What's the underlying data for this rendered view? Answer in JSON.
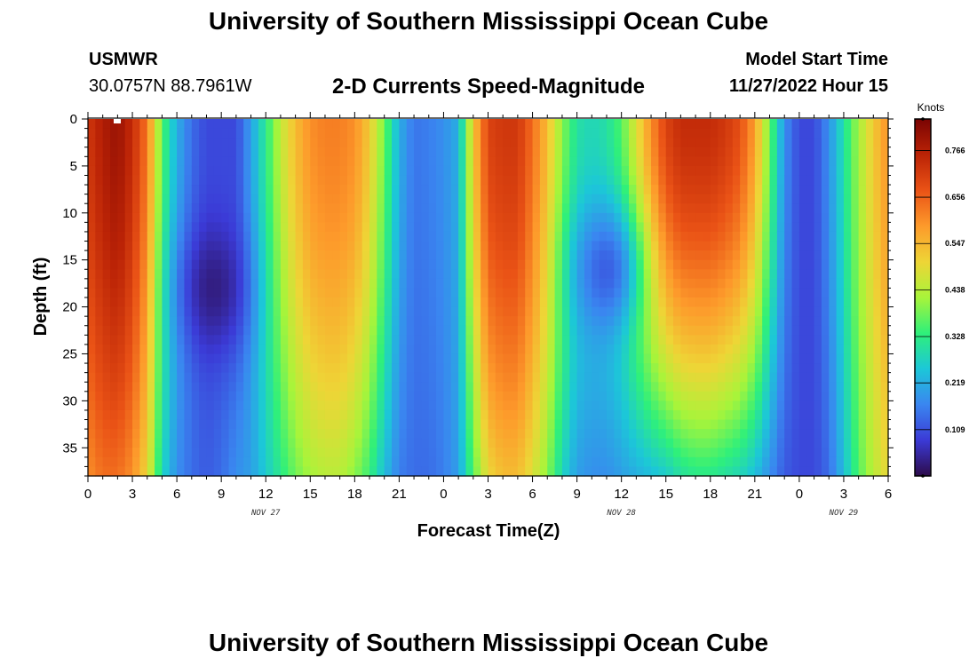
{
  "header": {
    "title": "University of Southern Mississippi Ocean Cube",
    "station": "USMWR",
    "coords": "30.0757N  88.7961W",
    "subtitle": "2-D Currents Speed-Magnitude",
    "model_label": "Model Start Time",
    "model_time": "11/27/2022 Hour 15"
  },
  "footer": {
    "title": "University of Southern Mississippi Ocean Cube"
  },
  "chart_data": {
    "type": "heatmap",
    "title": "2-D Currents Speed-Magnitude",
    "xlabel": "Forecast Time(Z)",
    "ylabel": "Depth (ft)",
    "x_hours_range": [
      0,
      54
    ],
    "ylim": [
      0,
      38
    ],
    "y_inverted": true,
    "x_tick_labels": [
      "0",
      "3",
      "6",
      "9",
      "12",
      "15",
      "18",
      "21",
      "0",
      "3",
      "6",
      "9",
      "12",
      "15",
      "18",
      "21",
      "0",
      "3",
      "6"
    ],
    "x_tick_hours": [
      0,
      3,
      6,
      9,
      12,
      15,
      18,
      21,
      24,
      27,
      30,
      33,
      36,
      39,
      42,
      45,
      48,
      51,
      54
    ],
    "date_labels": [
      {
        "text": "NOV 27",
        "hour": 12
      },
      {
        "text": "NOV 28",
        "hour": 36
      },
      {
        "text": "NOV 29",
        "hour": 51
      }
    ],
    "y_ticks": [
      0,
      5,
      10,
      15,
      20,
      25,
      30,
      35
    ],
    "colorbar": {
      "unit": "Knots",
      "min": 0.0,
      "max": 0.84,
      "ticks": [
        0.109,
        0.219,
        0.328,
        0.438,
        0.547,
        0.656,
        0.766
      ],
      "colors": [
        "#2d0b4a",
        "#3b3ad6",
        "#3a86f0",
        "#1cc7d8",
        "#2ff07a",
        "#a8f43a",
        "#eed536",
        "#fd9a2b",
        "#ea5316",
        "#bb2306",
        "#7a0403"
      ]
    },
    "surface_speed_knots": {
      "hours": [
        0,
        1,
        2,
        3,
        4,
        5,
        6,
        7,
        8,
        9,
        10,
        11,
        12,
        13,
        14,
        15,
        16,
        17,
        18,
        19,
        20,
        21,
        22,
        23,
        24,
        25,
        26,
        27,
        28,
        29,
        30,
        31,
        32,
        33,
        34,
        35,
        36,
        37,
        38,
        39,
        40,
        41,
        42,
        43,
        44,
        45,
        46,
        47,
        48,
        49,
        50,
        51,
        52,
        53,
        54
      ],
      "values": [
        0.72,
        0.77,
        0.8,
        0.74,
        0.63,
        0.36,
        0.22,
        0.14,
        0.1,
        0.1,
        0.1,
        0.2,
        0.32,
        0.45,
        0.54,
        0.6,
        0.62,
        0.62,
        0.6,
        0.52,
        0.38,
        0.22,
        0.15,
        0.16,
        0.18,
        0.22,
        0.52,
        0.7,
        0.72,
        0.72,
        0.64,
        0.54,
        0.4,
        0.3,
        0.28,
        0.3,
        0.36,
        0.48,
        0.6,
        0.7,
        0.74,
        0.74,
        0.74,
        0.72,
        0.68,
        0.58,
        0.38,
        0.18,
        0.1,
        0.1,
        0.18,
        0.3,
        0.42,
        0.52,
        0.6
      ]
    },
    "bottom_speed_knots": {
      "hours": [
        0,
        1,
        2,
        3,
        4,
        5,
        6,
        7,
        8,
        9,
        10,
        11,
        12,
        13,
        14,
        15,
        16,
        17,
        18,
        19,
        20,
        21,
        22,
        23,
        24,
        25,
        26,
        27,
        28,
        29,
        30,
        31,
        32,
        33,
        34,
        35,
        36,
        37,
        38,
        39,
        40,
        41,
        42,
        43,
        44,
        45,
        46,
        47,
        48,
        49,
        50,
        51,
        52,
        53,
        54
      ],
      "values": [
        0.6,
        0.64,
        0.64,
        0.6,
        0.5,
        0.28,
        0.18,
        0.14,
        0.12,
        0.14,
        0.18,
        0.2,
        0.26,
        0.32,
        0.38,
        0.42,
        0.44,
        0.44,
        0.4,
        0.34,
        0.24,
        0.16,
        0.14,
        0.14,
        0.16,
        0.2,
        0.36,
        0.5,
        0.54,
        0.54,
        0.48,
        0.4,
        0.28,
        0.2,
        0.18,
        0.18,
        0.2,
        0.22,
        0.24,
        0.26,
        0.3,
        0.32,
        0.32,
        0.3,
        0.28,
        0.24,
        0.18,
        0.12,
        0.1,
        0.1,
        0.14,
        0.24,
        0.36,
        0.44,
        0.5
      ]
    },
    "mid_depth_minima": [
      {
        "hour": 8.5,
        "depth": 18,
        "speed": 0.02
      },
      {
        "hour": 35,
        "depth": 16,
        "speed": 0.1
      }
    ]
  }
}
